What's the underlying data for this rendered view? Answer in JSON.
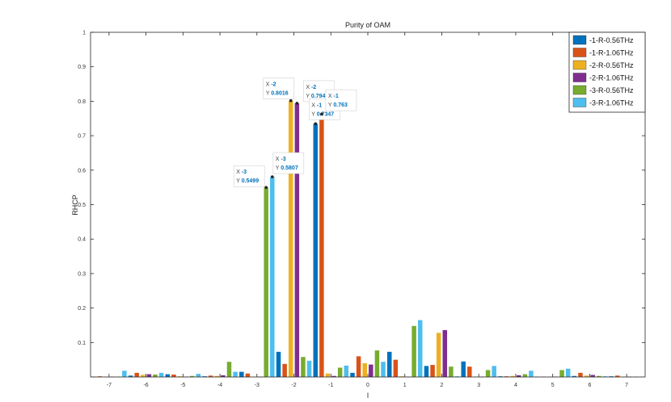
{
  "chart_data": {
    "type": "bar",
    "title": "Purity of OAM",
    "xlabel": "l",
    "ylabel": "RHCP",
    "xlim": [
      -7.5,
      7.5
    ],
    "ylim": [
      0,
      1
    ],
    "categories": [
      -7,
      -6,
      -5,
      -4,
      -3,
      -2,
      -1,
      0,
      1,
      2,
      3,
      4,
      5,
      6,
      7
    ],
    "xticks": [
      "-7",
      "-6",
      "-5",
      "-4",
      "-3",
      "-2",
      "-1",
      "0",
      "1",
      "2",
      "3",
      "4",
      "5",
      "6",
      "7"
    ],
    "yticks": [
      "0.1",
      "0.2",
      "0.3",
      "0.4",
      "0.5",
      "0.6",
      "0.7",
      "0.8",
      "0.9",
      "1"
    ],
    "ytick_values": [
      0.1,
      0.2,
      0.3,
      0.4,
      0.5,
      0.6,
      0.7,
      0.8,
      0.9,
      1
    ],
    "grid": false,
    "legend_location": "top-right",
    "series": [
      {
        "name": "-1-R-0.56THz",
        "color": "#0072BD",
        "values": [
          0.001,
          0.004,
          0.008,
          0.002,
          0.015,
          0.073,
          0.7347,
          0.012,
          0.073,
          0.032,
          0.045,
          0.002,
          0.001,
          0.003,
          0.002
        ]
      },
      {
        "name": "-1-R-1.06THz",
        "color": "#D95319",
        "values": [
          0.002,
          0.012,
          0.007,
          0.004,
          0.01,
          0.038,
          0.763,
          0.06,
          0.05,
          0.035,
          0.03,
          0.002,
          0.001,
          0.012,
          0.004
        ]
      },
      {
        "name": "-2-R-0.56THz",
        "color": "#EDB120",
        "values": [
          0.001,
          0.006,
          0.002,
          0.003,
          0.001,
          0.8016,
          0.01,
          0.04,
          0.002,
          0.128,
          0.001,
          0.003,
          0.001,
          0.004,
          0.001
        ]
      },
      {
        "name": "-2-R-1.06THz",
        "color": "#7E2F8E",
        "values": [
          0.001,
          0.008,
          0.001,
          0.005,
          0.001,
          0.7941,
          0.003,
          0.036,
          0.001,
          0.136,
          0.001,
          0.005,
          0.001,
          0.006,
          0.001
        ]
      },
      {
        "name": "-3-R-0.56THz",
        "color": "#77AC30",
        "values": [
          0.001,
          0.007,
          0.003,
          0.044,
          0.5499,
          0.058,
          0.027,
          0.077,
          0.148,
          0.03,
          0.02,
          0.008,
          0.02,
          0.003,
          0.001
        ]
      },
      {
        "name": "-3-R-1.06THz",
        "color": "#4DBEEE",
        "values": [
          0.018,
          0.012,
          0.009,
          0.015,
          0.5807,
          0.047,
          0.033,
          0.044,
          0.165,
          0.002,
          0.032,
          0.018,
          0.024,
          0.002,
          0.001
        ]
      }
    ],
    "annotations": [
      {
        "x_label": "X",
        "x_value": "-3",
        "y_label": "Y",
        "y_value": "0.5499",
        "series": 4,
        "category": -3
      },
      {
        "x_label": "X",
        "x_value": "-3",
        "y_label": "Y",
        "y_value": "0.5807",
        "series": 5,
        "category": -3
      },
      {
        "x_label": "X",
        "x_value": "-2",
        "y_label": "Y",
        "y_value": "0.8016",
        "series": 2,
        "category": -2
      },
      {
        "x_label": "X",
        "x_value": "-2",
        "y_label": "Y",
        "y_value": "0.7941",
        "series": 3,
        "category": -2
      },
      {
        "x_label": "X",
        "x_value": "-1",
        "y_label": "Y",
        "y_value": "0.7347",
        "series": 0,
        "category": -1
      },
      {
        "x_label": "X",
        "x_value": "-1",
        "y_label": "Y",
        "y_value": "0.763",
        "series": 1,
        "category": -1
      }
    ]
  }
}
